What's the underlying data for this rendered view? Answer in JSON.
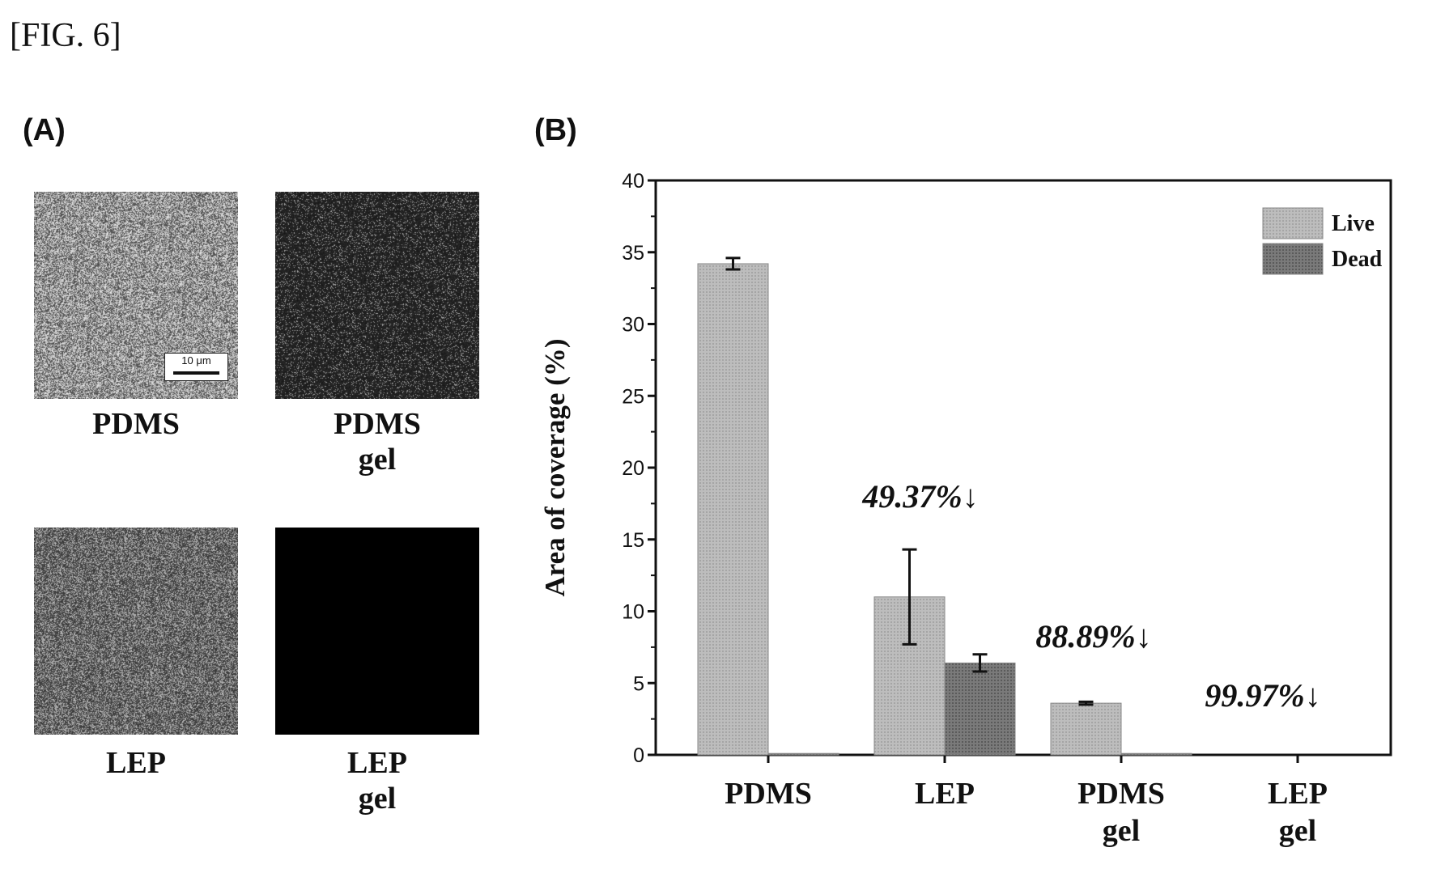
{
  "figure_label": "[FIG. 6]",
  "panel_a": {
    "label": "(A)",
    "images": [
      {
        "caption_line1": "PDMS",
        "caption_line2": "",
        "texture": "dense-speckle",
        "scale_bar": "10 μm"
      },
      {
        "caption_line1": "PDMS",
        "caption_line2": "gel",
        "texture": "sparse-speckle",
        "scale_bar": ""
      },
      {
        "caption_line1": "LEP",
        "caption_line2": "",
        "texture": "medium-speckle",
        "scale_bar": ""
      },
      {
        "caption_line1": "LEP",
        "caption_line2": "gel",
        "texture": "black",
        "scale_bar": ""
      }
    ]
  },
  "panel_b": {
    "label": "(B)"
  },
  "chart_data": {
    "type": "bar",
    "title": "",
    "xlabel": "",
    "ylabel": "Area of coverage (%)",
    "ylim": [
      0,
      40
    ],
    "yticks": [
      0,
      5,
      10,
      15,
      20,
      25,
      30,
      35,
      40
    ],
    "categories": [
      {
        "line1": "PDMS",
        "line2": ""
      },
      {
        "line1": "LEP",
        "line2": ""
      },
      {
        "line1": "PDMS",
        "line2": "gel"
      },
      {
        "line1": "LEP",
        "line2": "gel"
      }
    ],
    "series": [
      {
        "name": "Live",
        "values": [
          34.2,
          11.0,
          3.6,
          0.0
        ],
        "errors": [
          0.4,
          3.3,
          0.1,
          0.0
        ],
        "color": "#b4b4b4"
      },
      {
        "name": "Dead",
        "values": [
          0.1,
          6.4,
          0.1,
          0.0
        ],
        "errors": [
          0.0,
          0.6,
          0.0,
          0.0
        ],
        "color": "#707070"
      }
    ],
    "annotations": [
      {
        "text": "49.37%↓",
        "category": 1
      },
      {
        "text": "88.89%↓",
        "category": 2
      },
      {
        "text": "99.97%↓",
        "category": 3
      }
    ],
    "legend_position": "top-right",
    "grid": false
  }
}
